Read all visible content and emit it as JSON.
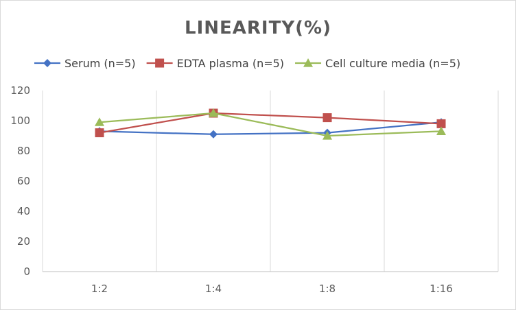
{
  "chart_data": {
    "type": "line",
    "title": "LINEARITY(%)",
    "categories": [
      "1:2",
      "1:4",
      "1:8",
      "1:16"
    ],
    "ylim": [
      0,
      120
    ],
    "yticks": [
      "0",
      "20",
      "40",
      "60",
      "80",
      "100",
      "120"
    ],
    "grid": "vertical",
    "legend_position": "top",
    "series": [
      {
        "name": "Serum (n=5)",
        "values": [
          93,
          91,
          92,
          99
        ],
        "color": "#4472c4",
        "marker": "diamond"
      },
      {
        "name": "EDTA plasma (n=5)",
        "values": [
          92,
          105,
          102,
          98
        ],
        "color": "#c0504d",
        "marker": "square"
      },
      {
        "name": "Cell culture media (n=5)",
        "values": [
          99,
          105,
          90,
          93
        ],
        "color": "#9bbb59",
        "marker": "triangle"
      }
    ]
  }
}
